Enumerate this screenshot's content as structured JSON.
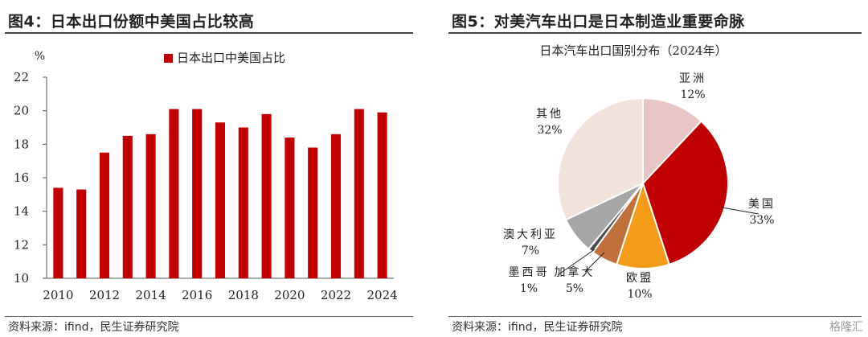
{
  "left_panel": {
    "title": "图4：日本出口份额中美国占比较高",
    "source": "资料来源：ifind，民生证券研究院"
  },
  "right_panel": {
    "title": "图5：对美汽车出口是日本制造业重要命脉",
    "source": "资料来源：ifind，民生证券研究院"
  },
  "watermark": "格隆汇",
  "colors": {
    "bar": "#c00000"
  },
  "chart_data": [
    {
      "type": "bar",
      "title": "",
      "unit_label": "%",
      "ylim": [
        10,
        22
      ],
      "yticks": [
        "10",
        "12",
        "14",
        "16",
        "18",
        "20",
        "22"
      ],
      "x": [
        2010,
        2011,
        2012,
        2013,
        2014,
        2015,
        2016,
        2017,
        2018,
        2019,
        2020,
        2021,
        2022,
        2023,
        2024
      ],
      "xtick_labels": [
        "2010",
        "2012",
        "2014",
        "2016",
        "2018",
        "2020",
        "2022",
        "2024"
      ],
      "series": [
        {
          "name": "日本出口中美国占比",
          "color": "#c00000",
          "values": [
            15.4,
            15.3,
            17.5,
            18.5,
            18.6,
            20.1,
            20.1,
            19.3,
            19.0,
            19.8,
            18.4,
            17.8,
            18.6,
            20.1,
            19.9
          ]
        }
      ],
      "legend_position": "top"
    },
    {
      "type": "pie",
      "title": "日本汽车出口国别分布（2024年）",
      "slices": [
        {
          "label": "亚洲",
          "value": 12,
          "pct_label": "12%",
          "color": "#e8c4c4"
        },
        {
          "label": "美国",
          "value": 33,
          "pct_label": "33%",
          "color": "#c00000"
        },
        {
          "label": "欧盟",
          "value": 10,
          "pct_label": "10%",
          "color": "#f59b1a"
        },
        {
          "label": "加拿大",
          "value": 5,
          "pct_label": "5%",
          "color": "#c0703a"
        },
        {
          "label": "墨西哥",
          "value": 1,
          "pct_label": "1%",
          "color": "#4a4a4a"
        },
        {
          "label": "澳大利亚",
          "value": 7,
          "pct_label": "7%",
          "color": "#a6a6a6"
        },
        {
          "label": "其他",
          "value": 32,
          "pct_label": "32%",
          "color": "#f2e4dd"
        }
      ]
    }
  ]
}
